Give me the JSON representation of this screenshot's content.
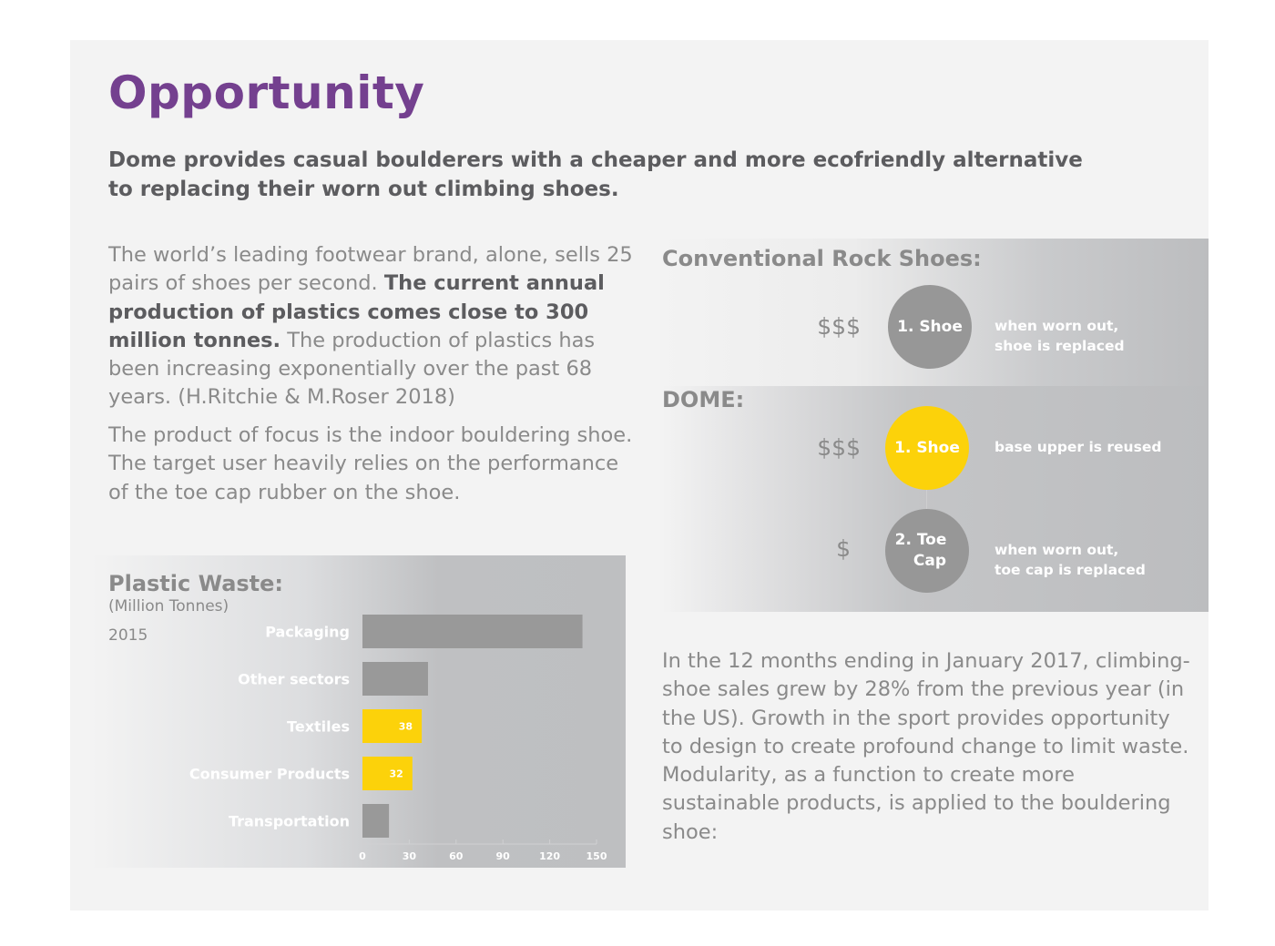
{
  "header": {
    "title": "Opportunity",
    "lead": "Dome provides casual boulderers with a cheaper and more ecofriendly alternative to replacing their worn out climbing shoes."
  },
  "left_column": {
    "para1_a": "The world’s leading footwear brand, alone, sells 25 pairs of shoes per second. ",
    "para1_bold": "The current annual production of plastics comes close to 300 million tonnes.",
    "para1_b": " The production of plastics has been increasing exponentially over the past 68 years. (H.Ritchie & M.Roser 2018)",
    "para2": "The product of focus is the indoor bouldering shoe. The target user heavily relies on the performance of the toe cap rubber on the shoe."
  },
  "right_column": {
    "para3": "In the 12 months ending in January 2017, climbing-shoe sales grew by 28% from the previous year (in the US). Growth in the sport provides opportunity to design to create profound change to limit waste. Modularity, as a function to create more sustainable products, is applied to the bouldering shoe:"
  },
  "diagram": {
    "conventional": {
      "heading": "Conventional Rock Shoes:",
      "items": [
        {
          "price": "$$$",
          "label": "1. Shoe",
          "desc_line1": "when worn out,",
          "desc_line2": "shoe is replaced",
          "color": "#979797"
        }
      ]
    },
    "dome": {
      "heading": "DOME:",
      "items": [
        {
          "price": "$$$",
          "label": "1. Shoe",
          "desc_line1": "base upper is reused",
          "desc_line2": "",
          "color": "#fcd20a"
        },
        {
          "price": "$",
          "label_line1": "2. Toe",
          "label_line2": "Cap",
          "desc_line1": "when worn out,",
          "desc_line2": "toe cap is replaced",
          "color": "#979797"
        }
      ]
    }
  },
  "colors": {
    "accent_purple": "#74408f",
    "highlight_yellow": "#fcd20a",
    "bar_grey": "#999999"
  },
  "chart_data": {
    "type": "bar",
    "orientation": "horizontal",
    "title": "Plastic Waste:",
    "subtitle": "(Million Tonnes)",
    "annotation": "2015",
    "xlabel": "",
    "ylabel": "",
    "categories": [
      "Packaging",
      "Other sectors",
      "Textiles",
      "Consumer Products",
      "Transportation"
    ],
    "values": [
      141,
      42,
      38,
      32,
      17
    ],
    "data_labels": [
      "",
      "",
      "38",
      "32",
      ""
    ],
    "highlight": [
      false,
      false,
      true,
      true,
      false
    ],
    "xlim": [
      0,
      150
    ],
    "xticks": [
      "0",
      "30",
      "60",
      "90",
      "120",
      "150"
    ],
    "grid": false,
    "legend": "none"
  }
}
